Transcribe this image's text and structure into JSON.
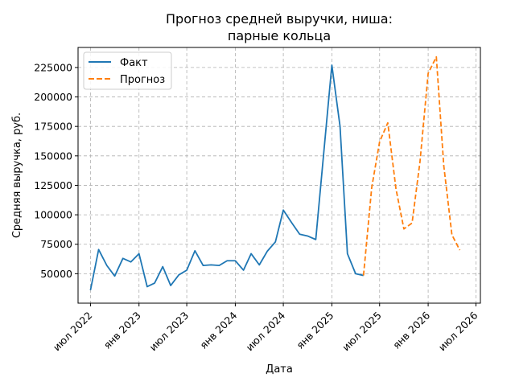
{
  "chart_data": {
    "type": "line",
    "title": [
      "Прогноз средней выручки, ниша:",
      "парные кольца"
    ],
    "xlabel": "Дата",
    "ylabel": "Средняя выручка, руб.",
    "grid": true,
    "legend_position": "top-left",
    "colors": {
      "fact": "#1f77b4",
      "forecast": "#ff7f0e",
      "grid": "#b0b0b0"
    },
    "ylim": [
      25000,
      242000
    ],
    "yticks": [
      50000,
      75000,
      100000,
      125000,
      150000,
      175000,
      200000,
      225000
    ],
    "xlim": [
      "2022-05-15",
      "2026-07-18"
    ],
    "xticks": [
      {
        "date": "2022-07-01",
        "label": "июл 2022"
      },
      {
        "date": "2023-01-01",
        "label": "янв 2023"
      },
      {
        "date": "2023-07-01",
        "label": "июл 2023"
      },
      {
        "date": "2024-01-01",
        "label": "янв 2024"
      },
      {
        "date": "2024-07-01",
        "label": "июл 2024"
      },
      {
        "date": "2025-01-01",
        "label": "янв 2025"
      },
      {
        "date": "2025-07-01",
        "label": "июл 2025"
      },
      {
        "date": "2026-01-01",
        "label": "янв 2026"
      },
      {
        "date": "2026-07-01",
        "label": "июл 2026"
      }
    ],
    "series": [
      {
        "name": "Факт",
        "style": "solid",
        "points": [
          [
            "2022-07-01",
            36000
          ],
          [
            "2022-08-01",
            70500
          ],
          [
            "2022-09-01",
            57000
          ],
          [
            "2022-10-01",
            48000
          ],
          [
            "2022-11-01",
            63000
          ],
          [
            "2022-12-01",
            60000
          ],
          [
            "2023-01-01",
            67000
          ],
          [
            "2023-02-01",
            39000
          ],
          [
            "2023-03-01",
            42000
          ],
          [
            "2023-04-01",
            56000
          ],
          [
            "2023-05-01",
            40000
          ],
          [
            "2023-06-01",
            49000
          ],
          [
            "2023-07-01",
            53000
          ],
          [
            "2023-08-01",
            69500
          ],
          [
            "2023-09-01",
            57000
          ],
          [
            "2023-10-01",
            57500
          ],
          [
            "2023-11-01",
            57000
          ],
          [
            "2023-12-01",
            61000
          ],
          [
            "2024-01-01",
            61000
          ],
          [
            "2024-02-01",
            53000
          ],
          [
            "2024-03-01",
            67000
          ],
          [
            "2024-04-01",
            57500
          ],
          [
            "2024-05-01",
            69000
          ],
          [
            "2024-06-01",
            77000
          ],
          [
            "2024-07-01",
            104000
          ],
          [
            "2024-08-01",
            93500
          ],
          [
            "2024-09-01",
            83500
          ],
          [
            "2024-10-01",
            82000
          ],
          [
            "2024-11-01",
            79000
          ],
          [
            "2024-12-01",
            152000
          ],
          [
            "2025-01-01",
            227000
          ],
          [
            "2025-02-01",
            175000
          ],
          [
            "2025-03-01",
            67000
          ],
          [
            "2025-04-01",
            50000
          ],
          [
            "2025-05-01",
            48500
          ]
        ]
      },
      {
        "name": "Прогноз",
        "style": "dashed",
        "points": [
          [
            "2025-05-01",
            48500
          ],
          [
            "2025-06-01",
            123000
          ],
          [
            "2025-07-01",
            162000
          ],
          [
            "2025-08-01",
            178000
          ],
          [
            "2025-09-01",
            122000
          ],
          [
            "2025-10-01",
            88000
          ],
          [
            "2025-11-01",
            93000
          ],
          [
            "2025-12-01",
            145000
          ],
          [
            "2026-01-01",
            220000
          ],
          [
            "2026-02-01",
            234000
          ],
          [
            "2026-03-01",
            142000
          ],
          [
            "2026-04-01",
            83000
          ],
          [
            "2026-05-01",
            70000
          ]
        ]
      }
    ]
  }
}
